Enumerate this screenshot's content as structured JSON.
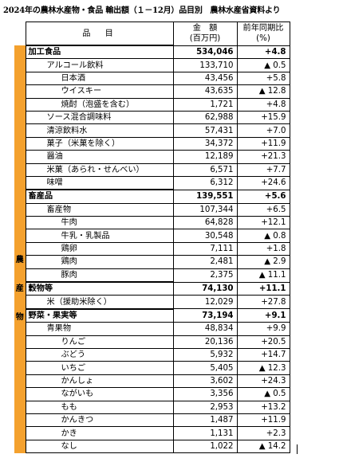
{
  "title": "2024年の農林水産物・食品 輸出額（１－12月）品目別　農林水産省資料より",
  "header": {
    "item": "品　目",
    "amount_line1": "金　額",
    "amount_line2": "(百万円)",
    "yoy_line1": "前年同期比",
    "yoy_line2": "(%)"
  },
  "side_label": [
    "農",
    "産",
    "物"
  ],
  "rows": [
    {
      "name": "加工食品",
      "amount": "534,046",
      "yoy": "+4.8",
      "level": 0,
      "major": true
    },
    {
      "name": "アルコール飲料",
      "amount": "133,710",
      "yoy": "▲ 0.5",
      "level": 1
    },
    {
      "name": "日本酒",
      "amount": "43,456",
      "yoy": "+5.8",
      "level": 2
    },
    {
      "name": "ウイスキー",
      "amount": "43,635",
      "yoy": "▲ 12.8",
      "level": 2
    },
    {
      "name": "焼酎（泡盛を含む）",
      "amount": "1,721",
      "yoy": "+4.8",
      "level": 2
    },
    {
      "name": "ソース混合調味料",
      "amount": "62,988",
      "yoy": "+15.9",
      "level": 1
    },
    {
      "name": "清涼飲料水",
      "amount": "57,431",
      "yoy": "+7.0",
      "level": 1
    },
    {
      "name": "菓子（米菓を除く）",
      "amount": "34,372",
      "yoy": "+11.9",
      "level": 1
    },
    {
      "name": "醤油",
      "amount": "12,189",
      "yoy": "+21.3",
      "level": 1
    },
    {
      "name": "米菓（あられ・せんべい）",
      "amount": "6,571",
      "yoy": "+7.7",
      "level": 1
    },
    {
      "name": "味噌",
      "amount": "6,312",
      "yoy": "+24.6",
      "level": 1
    },
    {
      "name": "畜産品",
      "amount": "139,551",
      "yoy": "+5.6",
      "level": 0,
      "major": true
    },
    {
      "name": "畜産物",
      "amount": "107,344",
      "yoy": "+6.5",
      "level": 1
    },
    {
      "name": "牛肉",
      "amount": "64,828",
      "yoy": "+12.1",
      "level": 2
    },
    {
      "name": "牛乳・乳製品",
      "amount": "30,548",
      "yoy": "▲ 0.8",
      "level": 2
    },
    {
      "name": "鶏卵",
      "amount": "7,111",
      "yoy": "+1.8",
      "level": 2
    },
    {
      "name": "鶏肉",
      "amount": "2,481",
      "yoy": "▲ 2.9",
      "level": 2
    },
    {
      "name": "豚肉",
      "amount": "2,375",
      "yoy": "▲ 11.1",
      "level": 2
    },
    {
      "name": "穀物等",
      "amount": "74,130",
      "yoy": "+11.1",
      "level": 0,
      "major": true
    },
    {
      "name": "米（援助米除く）",
      "amount": "12,029",
      "yoy": "+27.8",
      "level": 1
    },
    {
      "name": "野菜・果実等",
      "amount": "73,194",
      "yoy": "+9.1",
      "level": 0,
      "major": true
    },
    {
      "name": "青果物",
      "amount": "48,834",
      "yoy": "+9.9",
      "level": 1
    },
    {
      "name": "りんご",
      "amount": "20,136",
      "yoy": "+20.5",
      "level": 2
    },
    {
      "name": "ぶどう",
      "amount": "5,932",
      "yoy": "+14.7",
      "level": 2
    },
    {
      "name": "いちご",
      "amount": "5,405",
      "yoy": "▲ 12.3",
      "level": 2
    },
    {
      "name": "かんしょ",
      "amount": "3,602",
      "yoy": "+24.3",
      "level": 2
    },
    {
      "name": "ながいも",
      "amount": "3,356",
      "yoy": "▲ 0.5",
      "level": 2
    },
    {
      "name": "もも",
      "amount": "2,953",
      "yoy": "+13.2",
      "level": 2
    },
    {
      "name": "かんきつ",
      "amount": "1,487",
      "yoy": "+11.9",
      "level": 2
    },
    {
      "name": "かき",
      "amount": "1,131",
      "yoy": "+2.3",
      "level": 2
    },
    {
      "name": "なし",
      "amount": "1,022",
      "yoy": "▲ 14.2",
      "level": 2
    }
  ],
  "colors": {
    "side_bar": "#f4a12e"
  }
}
